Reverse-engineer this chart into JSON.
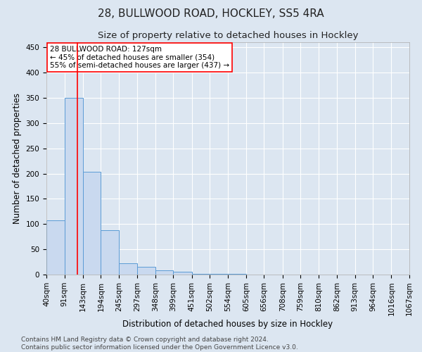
{
  "title1": "28, BULLWOOD ROAD, HOCKLEY, SS5 4RA",
  "title2": "Size of property relative to detached houses in Hockley",
  "xlabel": "Distribution of detached houses by size in Hockley",
  "ylabel": "Number of detached properties",
  "footer1": "Contains HM Land Registry data © Crown copyright and database right 2024.",
  "footer2": "Contains public sector information licensed under the Open Government Licence v3.0.",
  "bin_edges": [
    40,
    91,
    143,
    194,
    245,
    297,
    348,
    399,
    451,
    502,
    554,
    605,
    656,
    708,
    759,
    810,
    862,
    913,
    964,
    1016,
    1067
  ],
  "bar_heights": [
    107,
    350,
    203,
    88,
    23,
    15,
    9,
    5,
    2,
    1,
    1,
    0,
    0,
    0,
    0,
    0,
    0,
    0,
    0,
    0
  ],
  "bar_color": "#c9d9ef",
  "bar_edge_color": "#5b9bd5",
  "background_color": "#dce6f1",
  "plot_background": "#dce6f1",
  "grid_color": "#ffffff",
  "red_line_x": 127,
  "red_line_color": "#ff0000",
  "annotation_line1": "28 BULLWOOD ROAD: 127sqm",
  "annotation_line2": "← 45% of detached houses are smaller (354)",
  "annotation_line3": "55% of semi-detached houses are larger (437) →",
  "annotation_box_color": "#ffffff",
  "annotation_box_edge": "#ff0000",
  "ylim": [
    0,
    460
  ],
  "yticks": [
    0,
    50,
    100,
    150,
    200,
    250,
    300,
    350,
    400,
    450
  ],
  "title1_fontsize": 11,
  "title2_fontsize": 9.5,
  "xlabel_fontsize": 8.5,
  "ylabel_fontsize": 8.5,
  "tick_fontsize": 7.5,
  "annotation_fontsize": 7.5,
  "footer_fontsize": 6.5
}
